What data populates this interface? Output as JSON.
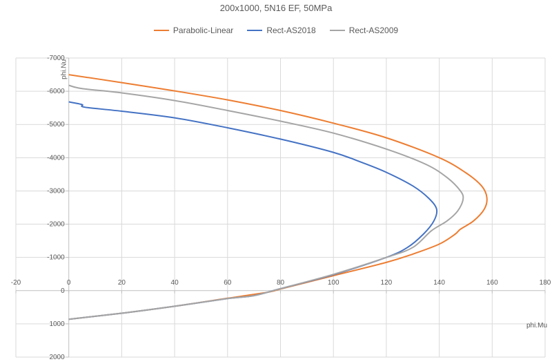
{
  "chart_data": {
    "type": "line",
    "title": "200x1000, 5N16 EF, 50MPa",
    "xlabel": "phi.Mu",
    "ylabel": "phi.Nu",
    "xlim": [
      -20,
      180
    ],
    "ylim": [
      -7000,
      2000
    ],
    "y_inverted": true,
    "x_ticks": [
      -20,
      0,
      20,
      40,
      60,
      80,
      100,
      120,
      140,
      160,
      180
    ],
    "y_ticks": [
      -7000,
      -6000,
      -5000,
      -4000,
      -3000,
      -2000,
      -1000,
      0,
      1000,
      2000
    ],
    "grid": true,
    "legend_position": "top-center",
    "series": [
      {
        "name": "Parabolic-Linear",
        "color": "#ED7D31",
        "points": [
          [
            0,
            -6500
          ],
          [
            20,
            -6260
          ],
          [
            40,
            -6010
          ],
          [
            60,
            -5740
          ],
          [
            80,
            -5420
          ],
          [
            100,
            -5040
          ],
          [
            120,
            -4600
          ],
          [
            140,
            -4000
          ],
          [
            150,
            -3550
          ],
          [
            156,
            -3150
          ],
          [
            158,
            -2800
          ],
          [
            157,
            -2450
          ],
          [
            153,
            -2100
          ],
          [
            148,
            -1850
          ],
          [
            146,
            -1700
          ],
          [
            140,
            -1400
          ],
          [
            130,
            -1100
          ],
          [
            120,
            -850
          ],
          [
            100,
            -450
          ],
          [
            90,
            -250
          ],
          [
            80,
            -50
          ],
          [
            75,
            50
          ],
          [
            60,
            230
          ],
          [
            40,
            470
          ],
          [
            20,
            680
          ],
          [
            0,
            860
          ]
        ]
      },
      {
        "name": "Rect-AS2018",
        "color": "#4472C4",
        "points": [
          [
            0,
            -5680
          ],
          [
            5,
            -5600
          ],
          [
            6,
            -5520
          ],
          [
            20,
            -5400
          ],
          [
            40,
            -5200
          ],
          [
            60,
            -4900
          ],
          [
            80,
            -4560
          ],
          [
            100,
            -4160
          ],
          [
            110,
            -3880
          ],
          [
            120,
            -3560
          ],
          [
            130,
            -3150
          ],
          [
            136,
            -2780
          ],
          [
            139,
            -2450
          ],
          [
            138,
            -2100
          ],
          [
            134,
            -1700
          ],
          [
            128,
            -1300
          ],
          [
            120,
            -1000
          ],
          [
            100,
            -480
          ],
          [
            80,
            -60
          ],
          [
            70,
            150
          ],
          [
            60,
            240
          ],
          [
            40,
            470
          ],
          [
            20,
            680
          ],
          [
            0,
            860
          ]
        ]
      },
      {
        "name": "Rect-AS2009",
        "color": "#A5A5A5",
        "points": [
          [
            0,
            -6180
          ],
          [
            5,
            -6080
          ],
          [
            20,
            -5950
          ],
          [
            40,
            -5720
          ],
          [
            60,
            -5420
          ],
          [
            80,
            -5100
          ],
          [
            100,
            -4740
          ],
          [
            120,
            -4260
          ],
          [
            135,
            -3800
          ],
          [
            143,
            -3400
          ],
          [
            148,
            -3000
          ],
          [
            149,
            -2750
          ],
          [
            147,
            -2400
          ],
          [
            143,
            -2100
          ],
          [
            137,
            -1800
          ],
          [
            130,
            -1300
          ],
          [
            120,
            -1000
          ],
          [
            100,
            -490
          ],
          [
            80,
            -60
          ],
          [
            70,
            150
          ],
          [
            60,
            240
          ],
          [
            40,
            470
          ],
          [
            20,
            680
          ],
          [
            0,
            860
          ]
        ]
      }
    ]
  }
}
